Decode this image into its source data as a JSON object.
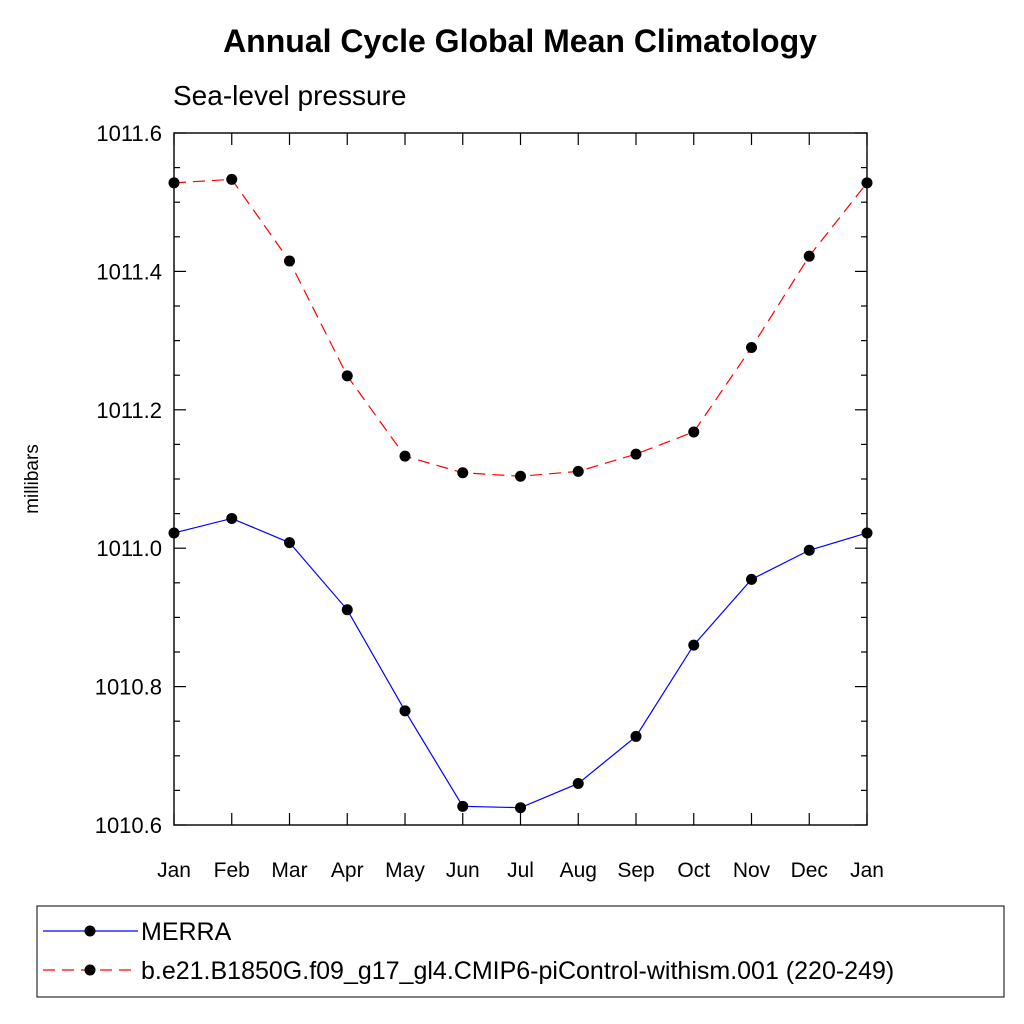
{
  "chart_data": {
    "type": "line",
    "title": "Annual Cycle Global Mean Climatology",
    "subtitle": "Sea-level pressure",
    "xlabel": "",
    "ylabel": "millibars",
    "ylim": [
      1010.6,
      1011.6
    ],
    "yticks": [
      "1010.6",
      "1010.8",
      "1011.0",
      "1011.2",
      "1011.4",
      "1011.6"
    ],
    "categories": [
      "Jan",
      "Feb",
      "Mar",
      "Apr",
      "May",
      "Jun",
      "Jul",
      "Aug",
      "Sep",
      "Oct",
      "Nov",
      "Dec",
      "Jan"
    ],
    "series": [
      {
        "name": "MERRA",
        "color": "#0000ff",
        "dash": "solid",
        "values": [
          1011.022,
          1011.043,
          1011.008,
          1010.911,
          1010.765,
          1010.627,
          1010.625,
          1010.66,
          1010.728,
          1010.86,
          1010.955,
          1010.997,
          1011.022
        ]
      },
      {
        "name": "b.e21.B1850G.f09_g17_gl4.CMIP6-piControl-withism.001 (220-249)",
        "color": "#ff0000",
        "dash": "dashed",
        "values": [
          1011.528,
          1011.533,
          1011.415,
          1011.249,
          1011.133,
          1011.109,
          1011.104,
          1011.111,
          1011.136,
          1011.168,
          1011.29,
          1011.422,
          1011.528
        ]
      }
    ],
    "legend": "bottom"
  }
}
